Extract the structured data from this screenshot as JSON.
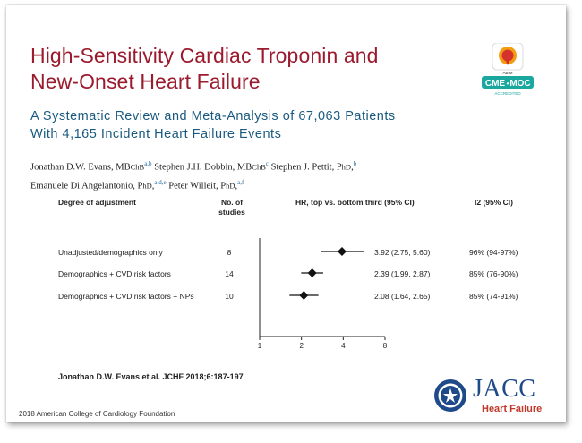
{
  "title": {
    "line1": "High-Sensitivity Cardiac Troponin and",
    "line2": "New-Onset Heart Failure"
  },
  "subtitle": {
    "line1": "A Systematic Review and Meta-Analysis of 67,063 Patients",
    "line2": "With 4,165 Incident Heart Failure Events"
  },
  "badge": {
    "top_text": "ABIM",
    "cme": "CME",
    "moc": "MOC",
    "accredited": "ACCREDITED",
    "colors": {
      "teal": "#1aa7a0",
      "red": "#d6322c",
      "orange": "#f39c12"
    }
  },
  "authors": {
    "a1": "Jonathan D.W. Evans, MB",
    "a1_deg": "ChB",
    "a1_sup": "a,b",
    "a2": "Stephen J.H. Dobbin, MB",
    "a2_deg": "ChB",
    "a2_sup": "c",
    "a3": "Stephen J. Pettit, P",
    "a3_deg": "hD",
    "a3_sup": "b",
    "a4": "Emanuele Di Angelantonio, P",
    "a4_deg": "hD",
    "a4_sup": "a,d,e",
    "a5": "Peter Willeit, P",
    "a5_deg": "hD",
    "a5_sup": "a,f"
  },
  "table": {
    "headers": {
      "adjustment": "Degree of adjustment",
      "studies_line1": "No. of",
      "studies_line2": "studies",
      "hr": "HR, top vs. bottom third (95% CI)",
      "i2": "I2 (95% CI)"
    },
    "rows": [
      {
        "label": "Unadjusted/demographics only",
        "n": "8",
        "hr_text": "3.92 (2.75, 5.60)",
        "i2": "96% (94-97%)"
      },
      {
        "label": "Demographics + CVD risk factors",
        "n": "14",
        "hr_text": "2.39 (1.99, 2.87)",
        "i2": "85% (76-90%)"
      },
      {
        "label": "Demographics + CVD risk factors + NPs",
        "n": "10",
        "hr_text": "2.08 (1.64, 2.65)",
        "i2": "85% (74-91%)"
      }
    ]
  },
  "chart_data": {
    "type": "scatter",
    "subtype": "forest-plot",
    "scale": "log2",
    "xlim": [
      1,
      8
    ],
    "x_ticks": [
      1,
      2,
      4,
      8
    ],
    "reference_line": 1,
    "series": [
      {
        "name": "Unadjusted/demographics only",
        "estimate": 3.92,
        "lower": 2.75,
        "upper": 5.6
      },
      {
        "name": "Demographics + CVD risk factors",
        "estimate": 2.39,
        "lower": 1.99,
        "upper": 2.87
      },
      {
        "name": "Demographics + CVD risk factors + NPs",
        "estimate": 2.08,
        "lower": 1.64,
        "upper": 2.65
      }
    ]
  },
  "citation": "Jonathan D.W. Evans et al. JCHF 2018;6:187-197",
  "copyright": "2018 American College of Cardiology Foundation",
  "journal": {
    "name": "JACC",
    "sub": "Heart Failure",
    "color": "#1f4a8a",
    "sub_color": "#c0392b"
  }
}
